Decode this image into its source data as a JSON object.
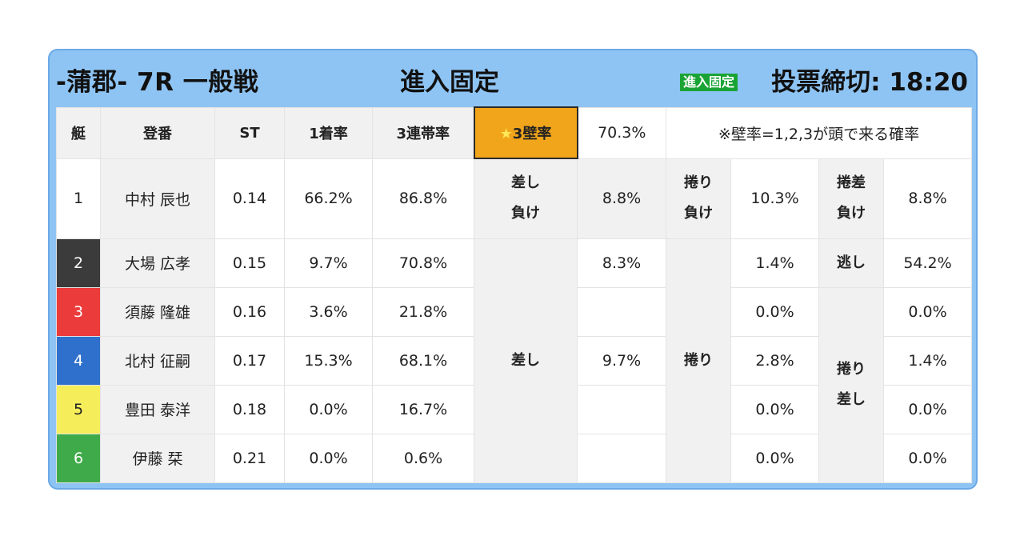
{
  "header": {
    "venue_race": "-蒲郡- 7R 一般戦",
    "title": "進入固定",
    "badge": "進入固定",
    "deadline": "投票締切: 18:20"
  },
  "columns": {
    "lane": "艇",
    "name": "登番",
    "st": "ST",
    "first_rate": "1着率",
    "top3_rate": "3連帯率"
  },
  "wall": {
    "label": "3壁率",
    "star": "★",
    "value": "70.3%",
    "note": "※壁率=1,2,3が頭で来る確率"
  },
  "colors": {
    "lane_1": "#ffffff",
    "lane_2": "#3b3b3b",
    "lane_3": "#ec3b3b",
    "lane_4": "#2f70cc",
    "lane_5": "#f5ee5a",
    "lane_6": "#3faa49",
    "wall_accent": "#f1a51a",
    "badge": "#1aa335",
    "frame": "#8ec4f3"
  },
  "rows": [
    {
      "lane": "1",
      "name": "中村 辰也",
      "st": "0.14",
      "first_rate": "66.2%",
      "top3_rate": "86.8%"
    },
    {
      "lane": "2",
      "name": "大場 広孝",
      "st": "0.15",
      "first_rate": "9.7%",
      "top3_rate": "70.8%"
    },
    {
      "lane": "3",
      "name": "須藤 隆雄",
      "st": "0.16",
      "first_rate": "3.6%",
      "top3_rate": "21.8%"
    },
    {
      "lane": "4",
      "name": "北村 征嗣",
      "st": "0.17",
      "first_rate": "15.3%",
      "top3_rate": "68.1%"
    },
    {
      "lane": "5",
      "name": "豊田 泰洋",
      "st": "0.18",
      "first_rate": "0.0%",
      "top3_rate": "16.7%"
    },
    {
      "lane": "6",
      "name": "伊藤 栞",
      "st": "0.21",
      "first_rate": "0.0%",
      "top3_rate": "0.6%"
    }
  ],
  "kimarite": {
    "sashi_make": {
      "line1": "差し",
      "line2": "負け",
      "value": "8.8%"
    },
    "makuri_make": {
      "line1": "捲り",
      "line2": "負け",
      "value": "10.3%"
    },
    "makurisashi_make": {
      "line1": "捲差",
      "line2": "負け",
      "value": "8.8%"
    },
    "sashi": {
      "label": "差し",
      "values": [
        "8.3%",
        "",
        "9.7%",
        "",
        ""
      ]
    },
    "makuri": {
      "label": "捲り",
      "values": [
        "1.4%",
        "0.0%",
        "2.8%",
        "0.0%",
        "0.0%"
      ]
    },
    "nige": {
      "label": "逃し",
      "value": "54.2%"
    },
    "makurisashi": {
      "line1": "捲り",
      "line2": "差し",
      "values": [
        "0.0%",
        "1.4%",
        "0.0%",
        "0.0%"
      ]
    }
  }
}
